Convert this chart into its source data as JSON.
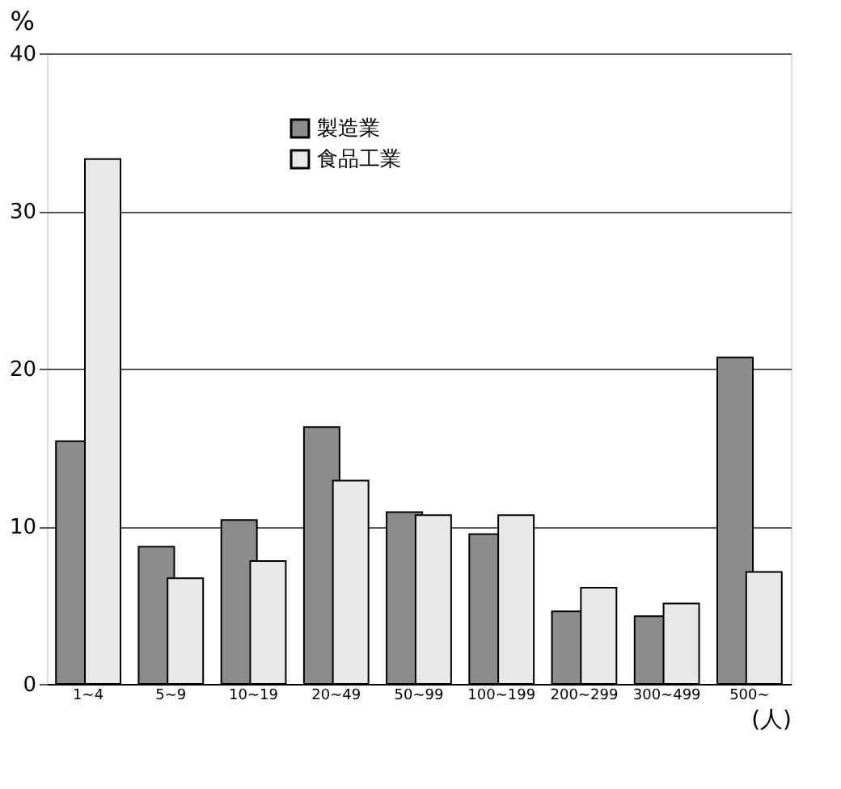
{
  "chart_data": {
    "type": "bar",
    "categories": [
      "1~4",
      "5~9",
      "10~19",
      "20~49",
      "50~99",
      "100~199",
      "200~299",
      "300~499",
      "500~"
    ],
    "series": [
      {
        "name": "製造業",
        "color": "#8c8c8c",
        "values": [
          15.4,
          8.7,
          10.4,
          16.3,
          10.9,
          9.5,
          4.6,
          4.3,
          20.7
        ]
      },
      {
        "name": "食品工業",
        "color": "#e8e8e8",
        "values": [
          33.3,
          6.7,
          7.8,
          12.9,
          10.7,
          10.7,
          6.1,
          5.1,
          7.1
        ]
      }
    ],
    "ylabel": "%",
    "xlabel": "(人)",
    "ylim": [
      0,
      40
    ],
    "yticks": [
      0,
      10,
      20,
      30,
      40
    ],
    "grid": "y",
    "legend": "top"
  }
}
